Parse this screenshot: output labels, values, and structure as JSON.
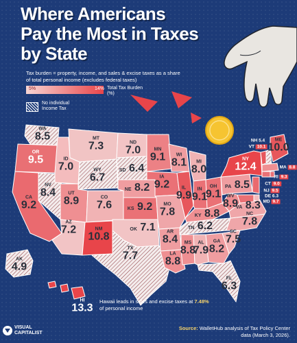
{
  "title": "Where Americans Pay the Most in Taxes by State",
  "subtitle": "Tax burden = property, income, and sales & excise taxes as a share of total personal income (excludes federal taxes)",
  "legend": {
    "min_label": "5%",
    "max_label": "14%",
    "color_label": "Total Tax Burden (%)",
    "hatch_label": "No individual Income Tax",
    "colors": {
      "low": "#f7d5d3",
      "high": "#e8454a"
    }
  },
  "states": {
    "WA": {
      "code": "WA",
      "value": "8.5",
      "no_income_tax": true
    },
    "OR": {
      "code": "OR",
      "value": "9.5"
    },
    "CA": {
      "code": "CA",
      "value": "9.2"
    },
    "NV": {
      "code": "NV",
      "value": "8.4",
      "no_income_tax": true
    },
    "ID": {
      "code": "ID",
      "value": "7.0"
    },
    "MT": {
      "code": "MT",
      "value": "7.3"
    },
    "WY": {
      "code": "WY",
      "value": "6.7",
      "no_income_tax": true
    },
    "UT": {
      "code": "UT",
      "value": "8.9"
    },
    "AZ": {
      "code": "AZ",
      "value": "7.2"
    },
    "CO": {
      "code": "CO",
      "value": "7.6"
    },
    "NM": {
      "code": "NM",
      "value": "10.8"
    },
    "ND": {
      "code": "ND",
      "value": "7.0"
    },
    "SD": {
      "code": "SD",
      "value": "6.4",
      "no_income_tax": true
    },
    "NE": {
      "code": "NE",
      "value": "8.2"
    },
    "KS": {
      "code": "KS",
      "value": "9.2"
    },
    "OK": {
      "code": "OK",
      "value": "7.1"
    },
    "TX": {
      "code": "TX",
      "value": "7.7",
      "no_income_tax": true
    },
    "MN": {
      "code": "MN",
      "value": "9.1"
    },
    "IA": {
      "code": "IA",
      "value": "9.2"
    },
    "MO": {
      "code": "MO",
      "value": "7.8"
    },
    "AR": {
      "code": "AR",
      "value": "8.4"
    },
    "LA": {
      "code": "LA",
      "value": "8.8"
    },
    "WI": {
      "code": "WI",
      "value": "8.1"
    },
    "IL": {
      "code": "IL",
      "value": "9.9"
    },
    "MI": {
      "code": "MI",
      "value": "8.0"
    },
    "IN": {
      "code": "IN",
      "value": "9.1"
    },
    "OH": {
      "code": "OH",
      "value": "9.1"
    },
    "KY": {
      "code": "KY",
      "value": "8.8"
    },
    "TN": {
      "code": "TN",
      "value": "6.2",
      "no_income_tax": true
    },
    "MS": {
      "code": "MS",
      "value": "8.8"
    },
    "AL": {
      "code": "AL",
      "value": "7.9"
    },
    "GA": {
      "code": "GA",
      "value": "8.2"
    },
    "FL": {
      "code": "FL",
      "value": "6.3",
      "no_income_tax": true
    },
    "SC": {
      "code": "SC",
      "value": "7.5"
    },
    "NC": {
      "code": "NC",
      "value": "7.8"
    },
    "VA": {
      "code": "VA",
      "value": "8.3"
    },
    "WV": {
      "code": "WV",
      "value": "8.9"
    },
    "PA": {
      "code": "PA",
      "value": "8.5"
    },
    "NY": {
      "code": "NY",
      "value": "12.4"
    },
    "ME": {
      "code": "ME",
      "value": "10.0"
    },
    "NH": {
      "code": "NH",
      "value": "5.4",
      "no_income_tax": true
    },
    "VT": {
      "code": "VT",
      "value": "10.1"
    },
    "MA": {
      "code": "MA",
      "value": "8.8"
    },
    "RI": {
      "code": "RI",
      "value": "9.3"
    },
    "CT": {
      "code": "CT",
      "value": "9.0"
    },
    "NJ": {
      "code": "NJ",
      "value": "9.5"
    },
    "DE": {
      "code": "DE",
      "value": "6.3"
    },
    "MD": {
      "code": "MD",
      "value": "9.7"
    },
    "AK": {
      "code": "AK",
      "value": "4.9",
      "no_income_tax": true
    },
    "HI": {
      "code": "HI",
      "value": "13.3"
    }
  },
  "hawaii_note": {
    "text": "Hawaii leads in sales and excise taxes at ",
    "highlight": "7.48%",
    "tail": " of personal income"
  },
  "brand": {
    "line1": "VISUAL",
    "line2": "CAPITALIST"
  },
  "source": {
    "label": "Source:",
    "text": " WalletHub analysis of Tax Policy Center data (March 3, 2026)."
  }
}
